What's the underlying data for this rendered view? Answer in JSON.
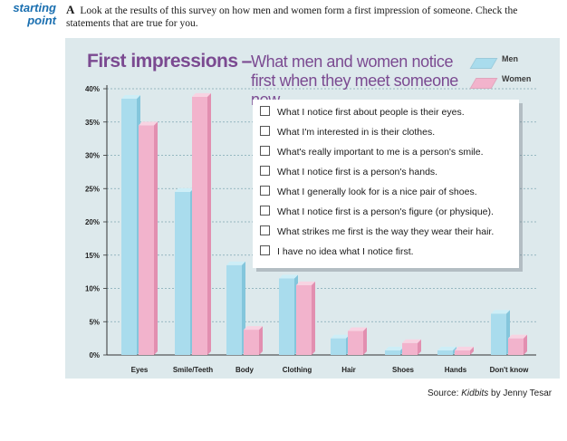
{
  "section_label": {
    "line1": "starting",
    "line2": "point"
  },
  "instruction": {
    "letter": "A",
    "text": "Look at the results of this survey on how men and women form a first impression of someone. Check the statements that are true for you."
  },
  "statements": [
    "What I notice first about people is their eyes.",
    "What I'm interested in is their clothes.",
    "What's really important to me is a person's smile.",
    "What I notice first is a person's hands.",
    "What I generally look for is a nice pair of shoes.",
    "What I notice first is a person's figure (or physique).",
    "What strikes me first is the way they wear their hair.",
    "I have no idea what I notice first."
  ],
  "source": {
    "prefix": "Source: ",
    "book": "Kidbits",
    "suffix": " by Jenny Tesar"
  },
  "colors": {
    "men": "#a9dced",
    "women": "#f2b3cc",
    "title": "#7b4a91",
    "panel": "#dde9ec",
    "label": "#1a6fb0"
  },
  "chart_data": {
    "type": "bar",
    "title": "First impressions",
    "subtitle": "What men and women notice first when they meet someone new",
    "categories": [
      "Eyes",
      "Smile/Teeth",
      "Body",
      "Clothing",
      "Hair",
      "Shoes",
      "Hands",
      "Don't know"
    ],
    "series": [
      {
        "name": "Men",
        "values": [
          38.5,
          24.5,
          13.5,
          11.5,
          2.5,
          0.7,
          0.7,
          6.2
        ]
      },
      {
        "name": "Women",
        "values": [
          34.5,
          38.8,
          3.8,
          10.5,
          3.6,
          1.8,
          0.7,
          2.5
        ]
      }
    ],
    "ylim": [
      0,
      40
    ],
    "yticks": [
      "0%",
      "5%",
      "10%",
      "15%",
      "20%",
      "25%",
      "30%",
      "35%",
      "40%"
    ],
    "ytick_values": [
      0,
      5,
      10,
      15,
      20,
      25,
      30,
      35,
      40
    ],
    "grid": true,
    "legend_position": "top-right"
  }
}
